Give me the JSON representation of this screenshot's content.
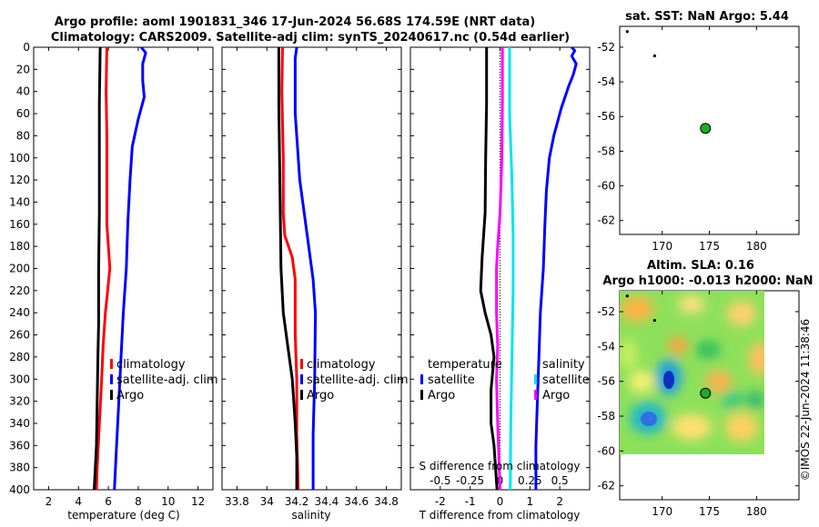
{
  "figure": {
    "title_line1": "Argo profile: aoml 1901831_346 17-Jun-2024 56.68S 174.59E (NRT data)",
    "title_line2": "Climatology: CARS2009. Satellite-adj clim: synTS_20240617.nc (0.54d earlier)",
    "credit": "©IMOS 22-Jun-2024 11:38:46"
  },
  "colors": {
    "argo": "#000000",
    "climatology": "#ff0000",
    "satellite": "#0000ff",
    "sat_diff": "#00e5ee",
    "argo_diff": "#ff00ff"
  },
  "chart_data": [
    {
      "id": "temp",
      "type": "line",
      "xlabel": "temperature (deg C)",
      "xlim": [
        1,
        13
      ],
      "ylim": [
        0,
        400
      ],
      "xticks": [
        2,
        4,
        6,
        8,
        10,
        12
      ],
      "xticklabels": [
        "2",
        "4",
        "6",
        "8",
        "10",
        "12"
      ],
      "yticks": [
        0,
        20,
        40,
        60,
        80,
        100,
        120,
        140,
        160,
        180,
        200,
        220,
        240,
        260,
        280,
        300,
        320,
        340,
        360,
        380,
        400
      ],
      "yticklabels": [
        "0",
        "20",
        "40",
        "60",
        "80",
        "100",
        "120",
        "140",
        "160",
        "180",
        "200",
        "220",
        "240",
        "260",
        "280",
        "300",
        "320",
        "340",
        "360",
        "380",
        "400"
      ],
      "legend": [
        "climatology",
        "satellite-adj. clim",
        "Argo"
      ],
      "series": [
        {
          "name": "climatology",
          "color_key": "climatology",
          "points": [
            [
              5.9,
              0
            ],
            [
              5.85,
              40
            ],
            [
              5.9,
              80
            ],
            [
              5.9,
              120
            ],
            [
              5.9,
              160
            ],
            [
              6.0,
              180
            ],
            [
              6.1,
              200
            ],
            [
              5.95,
              220
            ],
            [
              5.8,
              240
            ],
            [
              5.65,
              270
            ],
            [
              5.55,
              300
            ],
            [
              5.4,
              340
            ],
            [
              5.25,
              380
            ],
            [
              5.2,
              400
            ]
          ]
        },
        {
          "name": "satellite-adj. clim",
          "color_key": "satellite",
          "points": [
            [
              8.2,
              0
            ],
            [
              8.5,
              5
            ],
            [
              8.3,
              15
            ],
            [
              8.3,
              30
            ],
            [
              8.4,
              45
            ],
            [
              8.0,
              65
            ],
            [
              7.6,
              90
            ],
            [
              7.45,
              120
            ],
            [
              7.3,
              160
            ],
            [
              7.2,
              200
            ],
            [
              7.0,
              240
            ],
            [
              6.85,
              280
            ],
            [
              6.7,
              320
            ],
            [
              6.55,
              360
            ],
            [
              6.4,
              400
            ]
          ]
        },
        {
          "name": "Argo",
          "color_key": "argo",
          "points": [
            [
              5.45,
              0
            ],
            [
              5.4,
              50
            ],
            [
              5.4,
              100
            ],
            [
              5.4,
              150
            ],
            [
              5.35,
              200
            ],
            [
              5.35,
              250
            ],
            [
              5.3,
              280
            ],
            [
              5.25,
              320
            ],
            [
              5.2,
              360
            ],
            [
              5.05,
              400
            ]
          ]
        }
      ]
    },
    {
      "id": "sal",
      "type": "line",
      "xlabel": "salinity",
      "xlim": [
        33.7,
        34.9
      ],
      "ylim": [
        0,
        400
      ],
      "xticks": [
        33.8,
        34.0,
        34.2,
        34.4,
        34.6,
        34.8
      ],
      "xticklabels": [
        "33.8",
        "34",
        "34.2",
        "34.4",
        "34.6",
        "34.8"
      ],
      "legend": [
        "climatology",
        "satellite-adj. clim",
        "Argo"
      ],
      "series": [
        {
          "name": "climatology",
          "color_key": "climatology",
          "points": [
            [
              34.105,
              0
            ],
            [
              34.1,
              40
            ],
            [
              34.11,
              100
            ],
            [
              34.11,
              150
            ],
            [
              34.12,
              170
            ],
            [
              34.17,
              190
            ],
            [
              34.19,
              210
            ],
            [
              34.19,
              260
            ],
            [
              34.2,
              300
            ],
            [
              34.2,
              350
            ],
            [
              34.21,
              400
            ]
          ]
        },
        {
          "name": "satellite-adj. clim",
          "color_key": "satellite",
          "points": [
            [
              34.2,
              0
            ],
            [
              34.19,
              10
            ],
            [
              34.19,
              60
            ],
            [
              34.22,
              120
            ],
            [
              34.27,
              170
            ],
            [
              34.31,
              210
            ],
            [
              34.325,
              240
            ],
            [
              34.32,
              300
            ],
            [
              34.31,
              350
            ],
            [
              34.31,
              400
            ]
          ]
        },
        {
          "name": "Argo",
          "color_key": "argo",
          "points": [
            [
              34.08,
              0
            ],
            [
              34.08,
              50
            ],
            [
              34.085,
              100
            ],
            [
              34.09,
              150
            ],
            [
              34.095,
              200
            ],
            [
              34.11,
              240
            ],
            [
              34.14,
              270
            ],
            [
              34.17,
              300
            ],
            [
              34.19,
              340
            ],
            [
              34.2,
              370
            ],
            [
              34.2,
              400
            ]
          ]
        }
      ]
    },
    {
      "id": "diff",
      "type": "line",
      "xlabel": "T difference from climatology",
      "xlim": [
        -3,
        3
      ],
      "ylim": [
        0,
        400
      ],
      "xticks": [
        -2,
        -1,
        0,
        1,
        2
      ],
      "xticklabels": [
        "-2",
        "-1",
        "0",
        "1",
        "2"
      ],
      "top_xlabel": "S difference from climatology",
      "top_xticks": [
        -0.5,
        -0.25,
        0,
        0.25,
        0.5
      ],
      "top_xticklabels": [
        "-0.5",
        "-0.25",
        "0",
        "0.25",
        "0.5"
      ],
      "legend_left_title": "temperature",
      "legend_right_title": "salinity",
      "legend_left": [
        "satellite",
        "Argo"
      ],
      "legend_right": [
        "satellite",
        "Argo"
      ],
      "series": [
        {
          "name": "T satellite",
          "color_key": "satellite",
          "points": [
            [
              2.4,
              0
            ],
            [
              2.5,
              3
            ],
            [
              2.4,
              8
            ],
            [
              2.55,
              15
            ],
            [
              2.45,
              25
            ],
            [
              2.3,
              35
            ],
            [
              2.05,
              55
            ],
            [
              1.8,
              80
            ],
            [
              1.65,
              100
            ],
            [
              1.55,
              130
            ],
            [
              1.5,
              160
            ],
            [
              1.45,
              200
            ],
            [
              1.35,
              240
            ],
            [
              1.3,
              280
            ],
            [
              1.25,
              320
            ],
            [
              1.2,
              360
            ],
            [
              1.2,
              400
            ]
          ]
        },
        {
          "name": "T Argo",
          "color_key": "argo",
          "points": [
            [
              -0.45,
              0
            ],
            [
              -0.45,
              50
            ],
            [
              -0.48,
              100
            ],
            [
              -0.5,
              150
            ],
            [
              -0.6,
              190
            ],
            [
              -0.65,
              220
            ],
            [
              -0.5,
              240
            ],
            [
              -0.3,
              260
            ],
            [
              -0.2,
              280
            ],
            [
              -0.3,
              310
            ],
            [
              -0.3,
              340
            ],
            [
              -0.2,
              360
            ],
            [
              -0.1,
              400
            ]
          ]
        },
        {
          "name": "S satellite",
          "color_key": "sat_diff",
          "points": [
            [
              0.08,
              0
            ],
            [
              0.08,
              60
            ],
            [
              0.1,
              120
            ],
            [
              0.11,
              170
            ],
            [
              0.11,
              220
            ],
            [
              0.1,
              280
            ],
            [
              0.09,
              340
            ],
            [
              0.085,
              400
            ]
          ]
        },
        {
          "name": "S Argo",
          "color_key": "argo_diff",
          "points": [
            [
              0.02,
              0
            ],
            [
              0.02,
              50
            ],
            [
              0.015,
              100
            ],
            [
              0.0,
              150
            ],
            [
              -0.02,
              180
            ],
            [
              -0.03,
              200
            ],
            [
              -0.03,
              240
            ],
            [
              -0.02,
              270
            ],
            [
              -0.03,
              300
            ],
            [
              -0.02,
              340
            ],
            [
              -0.01,
              370
            ],
            [
              0.0,
              400
            ]
          ]
        }
      ]
    },
    {
      "id": "sst_map",
      "type": "scatter",
      "title": "sat. SST: NaN Argo: 5.44",
      "xlim": [
        165.5,
        184.5
      ],
      "ylim": [
        -62.8,
        -50.8
      ],
      "xticks": [
        170,
        175,
        180
      ],
      "xticklabels": [
        "170",
        "175",
        "180"
      ],
      "yticks": [
        -52,
        -54,
        -56,
        -58,
        -60,
        -62
      ],
      "yticklabels": [
        "-52",
        "-54",
        "-56",
        "-58",
        "-60",
        "-62"
      ],
      "tracks": [
        [
          166.3,
          -51.1
        ],
        [
          169.2,
          -52.5
        ]
      ],
      "float": [
        174.59,
        -56.68
      ]
    },
    {
      "id": "sla_map",
      "type": "heatmap",
      "title_line1": "Altim. SLA: 0.16",
      "title_line2": "Argo h1000: -0.013 h2000: NaN",
      "xlim": [
        165.5,
        184.5
      ],
      "ylim": [
        -62.8,
        -50.8
      ],
      "xticks": [
        170,
        175,
        180
      ],
      "xticklabels": [
        "170",
        "175",
        "180"
      ],
      "yticks": [
        -52,
        -54,
        -56,
        -58,
        -60,
        -62
      ],
      "yticklabels": [
        "-52",
        "-54",
        "-56",
        "-58",
        "-60",
        "-62"
      ],
      "data_extent": {
        "lon": [
          166.0,
          180.0
        ],
        "lat": [
          -60.1,
          -50.8
        ]
      },
      "tracks": [
        [
          166.3,
          -51.1
        ],
        [
          169.2,
          -52.5
        ]
      ],
      "float": [
        174.59,
        -56.68
      ]
    }
  ]
}
